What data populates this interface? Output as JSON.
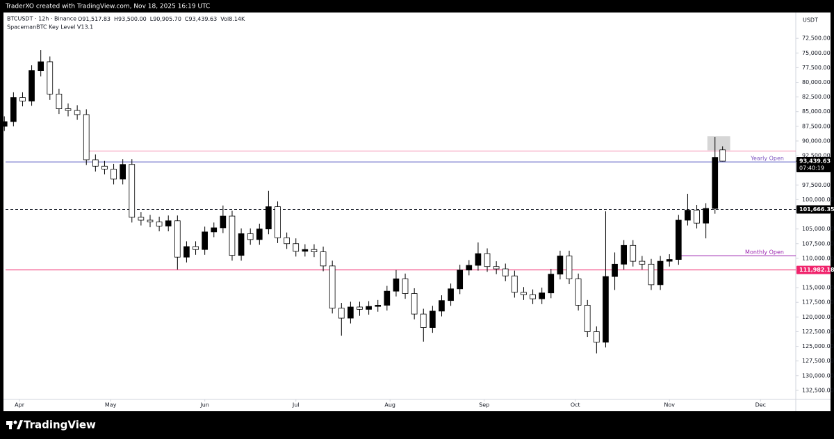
{
  "header": "TraderXO created with TradingView.com, Nov 18, 2025 16:19 UTC",
  "footer": {
    "brand": "TradingView"
  },
  "chart_data": {
    "type": "candlestick",
    "title": "BTCUSDT · 12h · Binance",
    "ohlc_text": [
      "O91,517.83",
      "H93,500.00",
      "L90,905.70",
      "C93,439.63",
      "Vol8.14K"
    ],
    "indicator": "SpacemanBTC Key Level V13.1",
    "currency": "USDT",
    "invert_scale": true,
    "up_color": "#ffffff",
    "down_color": "#000000",
    "wick_color": "#000000",
    "xlim": [
      -4.6,
      255.6
    ],
    "xticks": [
      {
        "value": 0,
        "label": "Apr"
      },
      {
        "value": 30,
        "label": "May"
      },
      {
        "value": 61,
        "label": "Jun"
      },
      {
        "value": 91,
        "label": "Jul"
      },
      {
        "value": 122,
        "label": "Aug"
      },
      {
        "value": 153,
        "label": "Sep"
      },
      {
        "value": 183,
        "label": "Oct"
      },
      {
        "value": 214,
        "label": "Nov"
      },
      {
        "value": 244,
        "label": "Dec"
      }
    ],
    "ylim": [
      68100,
      134050
    ],
    "yticks": [
      {
        "value": 72500,
        "label": "72,500.00"
      },
      {
        "value": 75000,
        "label": "75,000.00"
      },
      {
        "value": 77500,
        "label": "77,500.00"
      },
      {
        "value": 80000,
        "label": "80,000.00"
      },
      {
        "value": 82500,
        "label": "82,500.00"
      },
      {
        "value": 85000,
        "label": "85,000.00"
      },
      {
        "value": 87500,
        "label": "87,500.00"
      },
      {
        "value": 90000,
        "label": "90,000.00"
      },
      {
        "value": 92500,
        "label": "92,500.00"
      },
      {
        "value": 97500,
        "label": "97,500.00"
      },
      {
        "value": 100000,
        "label": "100,000.00"
      },
      {
        "value": 105000,
        "label": "105,000.00"
      },
      {
        "value": 107500,
        "label": "107,500.00"
      },
      {
        "value": 110000,
        "label": "110,000.00"
      },
      {
        "value": 115000,
        "label": "115,000.00"
      },
      {
        "value": 117500,
        "label": "117,500.00"
      },
      {
        "value": 120000,
        "label": "120,000.00"
      },
      {
        "value": 122500,
        "label": "122,500.00"
      },
      {
        "value": 125000,
        "label": "125,000.00"
      },
      {
        "value": 127500,
        "label": "127,500.00"
      },
      {
        "value": 130000,
        "label": "130,000.00"
      },
      {
        "value": 132500,
        "label": "132,500.00"
      }
    ],
    "x": [
      -5,
      -2,
      1,
      4,
      7,
      10,
      13,
      16,
      19,
      22,
      25,
      28,
      31,
      34,
      37,
      40,
      43,
      46,
      49,
      52,
      55,
      58,
      61,
      64,
      67,
      70,
      73,
      76,
      79,
      82,
      85,
      88,
      91,
      94,
      97,
      100,
      103,
      106,
      109,
      112,
      115,
      118,
      121,
      124,
      127,
      130,
      133,
      136,
      139,
      142,
      145,
      148,
      151,
      154,
      157,
      160,
      163,
      166,
      169,
      172,
      175,
      178,
      181,
      184,
      187,
      190,
      193,
      196,
      199,
      202,
      205,
      208,
      211,
      214,
      217,
      220,
      223,
      226,
      229,
      231.5
    ],
    "open": [
      87500,
      86700,
      82600,
      83200,
      78000,
      76500,
      82000,
      84500,
      84800,
      85500,
      93200,
      94300,
      94800,
      96500,
      94000,
      103000,
      103500,
      103800,
      104500,
      103600,
      109800,
      108000,
      108500,
      105500,
      104800,
      102800,
      109500,
      105800,
      106800,
      105000,
      101200,
      106500,
      107500,
      108800,
      108500,
      108900,
      111300,
      118500,
      120200,
      118300,
      118700,
      118200,
      118000,
      115600,
      113500,
      116000,
      119500,
      121800,
      119000,
      117200,
      115200,
      112000,
      111200,
      109200,
      111400,
      111800,
      113000,
      115800,
      116200,
      116900,
      115900,
      112700,
      109600,
      113500,
      118000,
      122500,
      124300,
      113100,
      111000,
      107800,
      110500,
      111000,
      114500,
      110500,
      110200,
      103500,
      101800,
      104000,
      101500,
      91517.83
    ],
    "high": [
      88300,
      87500,
      84100,
      84000,
      79000,
      83000,
      85400,
      85800,
      86400,
      94100,
      95200,
      95700,
      97400,
      97400,
      103900,
      104400,
      104700,
      105400,
      105400,
      111900,
      110700,
      109400,
      109400,
      106400,
      105700,
      110400,
      110400,
      107700,
      107700,
      105900,
      107400,
      108400,
      109700,
      109700,
      109800,
      112200,
      119400,
      123200,
      121100,
      119800,
      119600,
      119100,
      118900,
      116500,
      116900,
      120400,
      124200,
      122700,
      119900,
      118100,
      116100,
      112900,
      112100,
      112300,
      112700,
      113900,
      116700,
      117100,
      117800,
      117800,
      116800,
      113600,
      114400,
      118900,
      123400,
      126200,
      125200,
      115400,
      111900,
      111400,
      111900,
      115400,
      115400,
      111400,
      111100,
      104400,
      104900,
      106600,
      102400,
      93500
    ],
    "low": [
      85800,
      81700,
      81700,
      77100,
      74500,
      75600,
      81100,
      83600,
      83900,
      84600,
      92300,
      93400,
      93900,
      93100,
      93100,
      102100,
      102600,
      102900,
      102700,
      102700,
      107100,
      107100,
      104600,
      103900,
      101000,
      101900,
      104900,
      104900,
      104100,
      98500,
      100300,
      105600,
      106600,
      107600,
      107600,
      108000,
      110400,
      117600,
      117400,
      117400,
      117300,
      117100,
      114700,
      112000,
      112600,
      115100,
      118600,
      118100,
      116300,
      114300,
      111100,
      110300,
      107300,
      108300,
      110500,
      110900,
      112100,
      114900,
      115300,
      115000,
      111800,
      108700,
      108700,
      112600,
      117100,
      121600,
      102000,
      109000,
      106900,
      106900,
      109600,
      110100,
      109600,
      109300,
      102600,
      99000,
      100900,
      100600,
      89300,
      90905.7
    ],
    "close": [
      86700,
      82600,
      83200,
      78000,
      76500,
      82000,
      84500,
      84800,
      85500,
      93200,
      94300,
      94800,
      96500,
      94000,
      103000,
      103500,
      103800,
      104500,
      103600,
      109800,
      108000,
      108500,
      105500,
      104800,
      102800,
      109500,
      105800,
      106800,
      105000,
      101200,
      106500,
      107500,
      108800,
      108500,
      108900,
      111300,
      118500,
      120200,
      118300,
      118700,
      118200,
      118000,
      115600,
      113500,
      116000,
      119500,
      121800,
      119000,
      117200,
      115200,
      112000,
      111200,
      109200,
      111400,
      111800,
      113000,
      115800,
      116200,
      116900,
      115900,
      112700,
      109600,
      113500,
      118000,
      122500,
      124300,
      113100,
      111000,
      107800,
      110500,
      111000,
      114500,
      110500,
      110200,
      103500,
      101800,
      104000,
      101500,
      92800,
      93439.63
    ],
    "levels": [
      {
        "value": 91700,
        "color": "#f48fb1",
        "x0": 21
      },
      {
        "value": 93576,
        "color": "#5c5fc4",
        "label": "Yearly Open",
        "label_color": "#7e57c2"
      },
      {
        "value": 101666.35,
        "color": "#131722",
        "dashed": true,
        "price_label": "101,666.35",
        "label_bg": "#000000"
      },
      {
        "value": 109556,
        "color": "#9c27b0",
        "x0": 216,
        "label": "Monthly Open",
        "label_color": "#9c27b0"
      },
      {
        "value": 111982.18,
        "color": "#f0246c",
        "price_label": "111,982.18",
        "label_bg": "#f0246c"
      }
    ],
    "zones": [
      {
        "x0": 226.5,
        "x1": 234,
        "y0": 89200,
        "y1": 91600,
        "color": "#d6d6d6"
      }
    ],
    "last_price": {
      "value": 93439.63,
      "label": "93,439.63",
      "countdown": "07:40:19"
    }
  }
}
